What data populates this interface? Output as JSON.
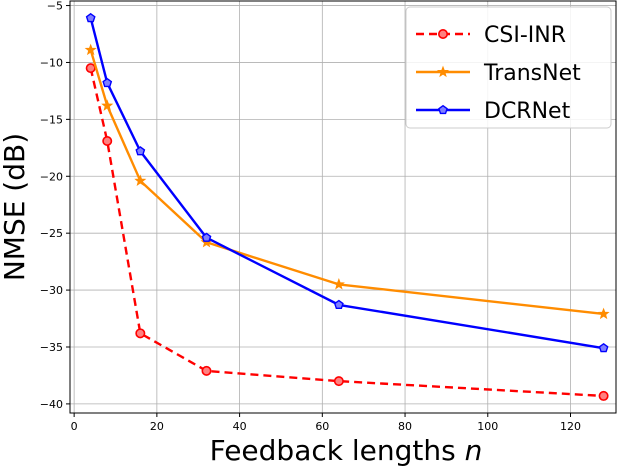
{
  "chart_data": {
    "type": "line",
    "xlabel": "Feedback lengths",
    "xlabel_var": "n",
    "ylabel": "NMSE (dB)",
    "xlim": [
      -1,
      131
    ],
    "ylim": [
      -40.8,
      -4.6
    ],
    "xticks": [
      0,
      20,
      40,
      60,
      80,
      100,
      120
    ],
    "yticks": [
      -40,
      -35,
      -30,
      -25,
      -20,
      -15,
      -10,
      -5
    ],
    "grid": true,
    "legend_position": "top-right",
    "series": [
      {
        "name": "CSI-INR",
        "color": "#ff0000",
        "linestyle": "dashed",
        "marker": "circle",
        "x": [
          4,
          8,
          16,
          32,
          64,
          128
        ],
        "y": [
          -10.5,
          -16.9,
          -33.8,
          -37.1,
          -38.0,
          -39.3
        ]
      },
      {
        "name": "TransNet",
        "color": "#ff8c00",
        "linestyle": "solid",
        "marker": "star",
        "x": [
          4,
          8,
          16,
          32,
          64,
          128
        ],
        "y": [
          -8.9,
          -13.8,
          -20.4,
          -25.8,
          -29.5,
          -32.1
        ]
      },
      {
        "name": "DCRNet",
        "color": "#0000ff",
        "linestyle": "solid",
        "marker": "pentagon",
        "x": [
          4,
          8,
          16,
          32,
          64,
          128
        ],
        "y": [
          -6.1,
          -11.8,
          -17.8,
          -25.4,
          -31.3,
          -35.1
        ]
      }
    ]
  }
}
